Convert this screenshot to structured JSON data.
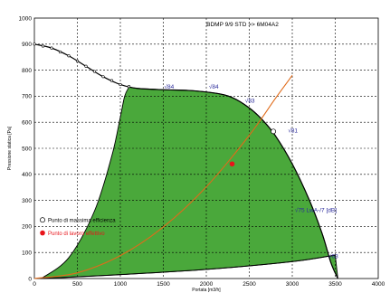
{
  "chart_data": {
    "type": "line",
    "title": "BDMP 9/9 STD >> 6M04A2",
    "xlabel": "Portata [m3/h]",
    "ylabel": "Pressione statica [Pa]",
    "xlim": [
      0,
      4000
    ],
    "ylim": [
      0,
      1000
    ],
    "x_ticks": [
      "0",
      "500",
      "1000",
      "1500",
      "2000",
      "2500",
      "3000",
      "3500",
      "4000"
    ],
    "y_ticks": [
      "0",
      "100",
      "200",
      "300",
      "400",
      "500",
      "600",
      "700",
      "800",
      "900",
      "1000"
    ],
    "grid": true,
    "colors": {
      "operating_area": "#4aa83b",
      "system_curve": "#e06b1a",
      "work_point": "#e8141a",
      "efficiency_point": "#ffffff",
      "area_outline": "#000000"
    },
    "series": [
      {
        "kind": "max-speed-curve",
        "x": [
          0,
          200,
          400,
          600,
          800,
          1000,
          1200,
          1500,
          1800,
          2100,
          2300,
          2500,
          2650,
          2800,
          3000,
          3200,
          3350,
          3450,
          3530
        ],
        "y": [
          900,
          885,
          855,
          815,
          775,
          745,
          730,
          725,
          722,
          712,
          695,
          655,
          610,
          550,
          440,
          300,
          170,
          60,
          0
        ]
      },
      {
        "kind": "area-lower-boundary",
        "x": [
          80,
          400,
          700,
          900,
          1000,
          1050,
          1100
        ],
        "y": [
          0,
          80,
          260,
          470,
          620,
          700,
          735
        ]
      },
      {
        "kind": "bottom-boundary",
        "x": [
          80,
          1000,
          2000,
          3000,
          3500
        ],
        "y": [
          0,
          15,
          35,
          65,
          90
        ]
      },
      {
        "kind": "system-curve",
        "x": [
          0,
          500,
          1000,
          1500,
          2000,
          2500,
          2800,
          3000
        ],
        "y": [
          0,
          22,
          88,
          198,
          352,
          550,
          690,
          780
        ]
      }
    ],
    "points": [
      {
        "label": "Punto di massima efficienza",
        "x": 2780,
        "y": 565
      },
      {
        "label": "Punto di lavoro effettivo",
        "x": 2300,
        "y": 440
      }
    ],
    "annotations": [
      {
        "text": "√84",
        "x": 1510,
        "y": 730
      },
      {
        "text": "√84",
        "x": 2030,
        "y": 730
      },
      {
        "text": "√83",
        "x": 2450,
        "y": 675
      },
      {
        "text": "√81",
        "x": 2950,
        "y": 560
      },
      {
        "text": "√75 LwA-/7 [dB]",
        "x": 3030,
        "y": 255
      },
      {
        "text": "√63",
        "x": 3420,
        "y": 78
      }
    ],
    "legend": {
      "placement": "left",
      "items": [
        {
          "label": "Punto di massima efficienza",
          "color": "#000000"
        },
        {
          "label": "Punto di lavoro effettivo",
          "color": "#e8141a"
        }
      ]
    }
  }
}
